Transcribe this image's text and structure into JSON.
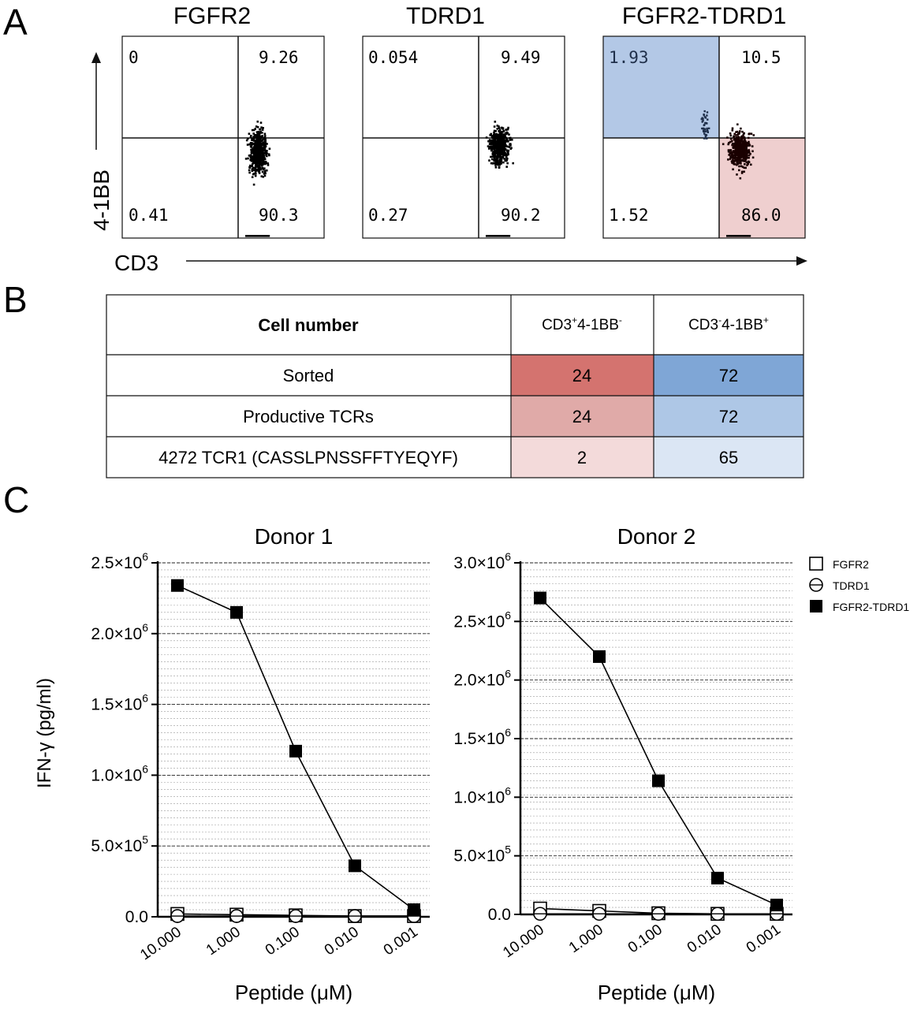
{
  "panel_labels": [
    "A",
    "B",
    "C"
  ],
  "panel_a": {
    "colors": {
      "gate_upper_left": "#b3c8e6",
      "gate_lower_right": "#efcfcf"
    },
    "y_axis_label": "4-1BB",
    "x_axis_label": "CD3",
    "plots": [
      {
        "title": "FGFR2",
        "q_ul": "0",
        "q_ur": "9.26",
        "q_ll": "0.41",
        "q_lr": "90.3",
        "gated": false
      },
      {
        "title": "TDRD1",
        "q_ul": "0.054",
        "q_ur": "9.49",
        "q_ll": "0.27",
        "q_lr": "90.2",
        "gated": false
      },
      {
        "title": "FGFR2-TDRD1",
        "q_ul": "1.93",
        "q_ur": "10.5",
        "q_ll": "1.52",
        "q_lr": "86.0",
        "gated": true
      }
    ]
  },
  "panel_b": {
    "header": "Cell number",
    "col1": {
      "base": "CD3",
      "sup1": "+",
      "mid": "4-1BB",
      "sup2": "-"
    },
    "col2": {
      "base": "CD3",
      "sup1": "-",
      "mid": "4-1BB",
      "sup2": "+"
    },
    "rows": [
      {
        "label": "Sorted",
        "v1": "24",
        "v2": "72",
        "c1": "#d4736f",
        "c2": "#7fa6d6"
      },
      {
        "label": "Productive TCRs",
        "v1": "24",
        "v2": "72",
        "c1": "#e0aaa8",
        "c2": "#aec7e6"
      },
      {
        "label": "4272 TCR1 (CASSLPNSSFFTYEQYF)",
        "v1": "2",
        "v2": "65",
        "c1": "#f3dada",
        "c2": "#dbe6f4"
      }
    ]
  },
  "chart_data": [
    {
      "type": "line",
      "title": "Donor 1",
      "xlabel": "Peptide (μM)",
      "ylabel": "IFN-γ (pg/ml)",
      "x": [
        "10.000",
        "1.000",
        "0.100",
        "0.010",
        "0.001"
      ],
      "ylim": [
        0,
        2500000
      ],
      "yticks": [
        {
          "v": 0,
          "m": "0.0",
          "e": ""
        },
        {
          "v": 500000,
          "m": "5.0×10",
          "e": "5"
        },
        {
          "v": 1000000,
          "m": "1.0×10",
          "e": "6"
        },
        {
          "v": 1500000,
          "m": "1.5×10",
          "e": "6"
        },
        {
          "v": 2000000,
          "m": "2.0×10",
          "e": "6"
        },
        {
          "v": 2500000,
          "m": "2.5×10",
          "e": "6"
        }
      ],
      "grid": true,
      "series": [
        {
          "name": "FGFR2",
          "marker": "open-square",
          "values": [
            20000,
            15000,
            10000,
            5000,
            5000
          ]
        },
        {
          "name": "TDRD1",
          "marker": "open-circle",
          "values": [
            5000,
            5000,
            5000,
            5000,
            5000
          ]
        },
        {
          "name": "FGFR2-TDRD1",
          "marker": "filled-square",
          "values": [
            2340000,
            2150000,
            1170000,
            360000,
            50000
          ]
        }
      ]
    },
    {
      "type": "line",
      "title": "Donor 2",
      "xlabel": "Peptide (μM)",
      "ylabel": "",
      "x": [
        "10.000",
        "1.000",
        "0.100",
        "0.010",
        "0.001"
      ],
      "ylim": [
        0,
        3000000
      ],
      "yticks": [
        {
          "v": 0,
          "m": "0.0",
          "e": ""
        },
        {
          "v": 500000,
          "m": "5.0×10",
          "e": "5"
        },
        {
          "v": 1000000,
          "m": "1.0×10",
          "e": "6"
        },
        {
          "v": 1500000,
          "m": "1.5×10",
          "e": "6"
        },
        {
          "v": 2000000,
          "m": "2.0×10",
          "e": "6"
        },
        {
          "v": 2500000,
          "m": "2.5×10",
          "e": "6"
        },
        {
          "v": 3000000,
          "m": "3.0×10",
          "e": "6"
        }
      ],
      "grid": true,
      "legend": "right",
      "series": [
        {
          "name": "FGFR2",
          "marker": "open-square",
          "values": [
            50000,
            30000,
            10000,
            5000,
            5000
          ]
        },
        {
          "name": "TDRD1",
          "marker": "open-circle",
          "values": [
            5000,
            5000,
            5000,
            5000,
            5000
          ]
        },
        {
          "name": "FGFR2-TDRD1",
          "marker": "filled-square",
          "values": [
            2700000,
            2200000,
            1140000,
            310000,
            80000
          ]
        }
      ]
    }
  ]
}
